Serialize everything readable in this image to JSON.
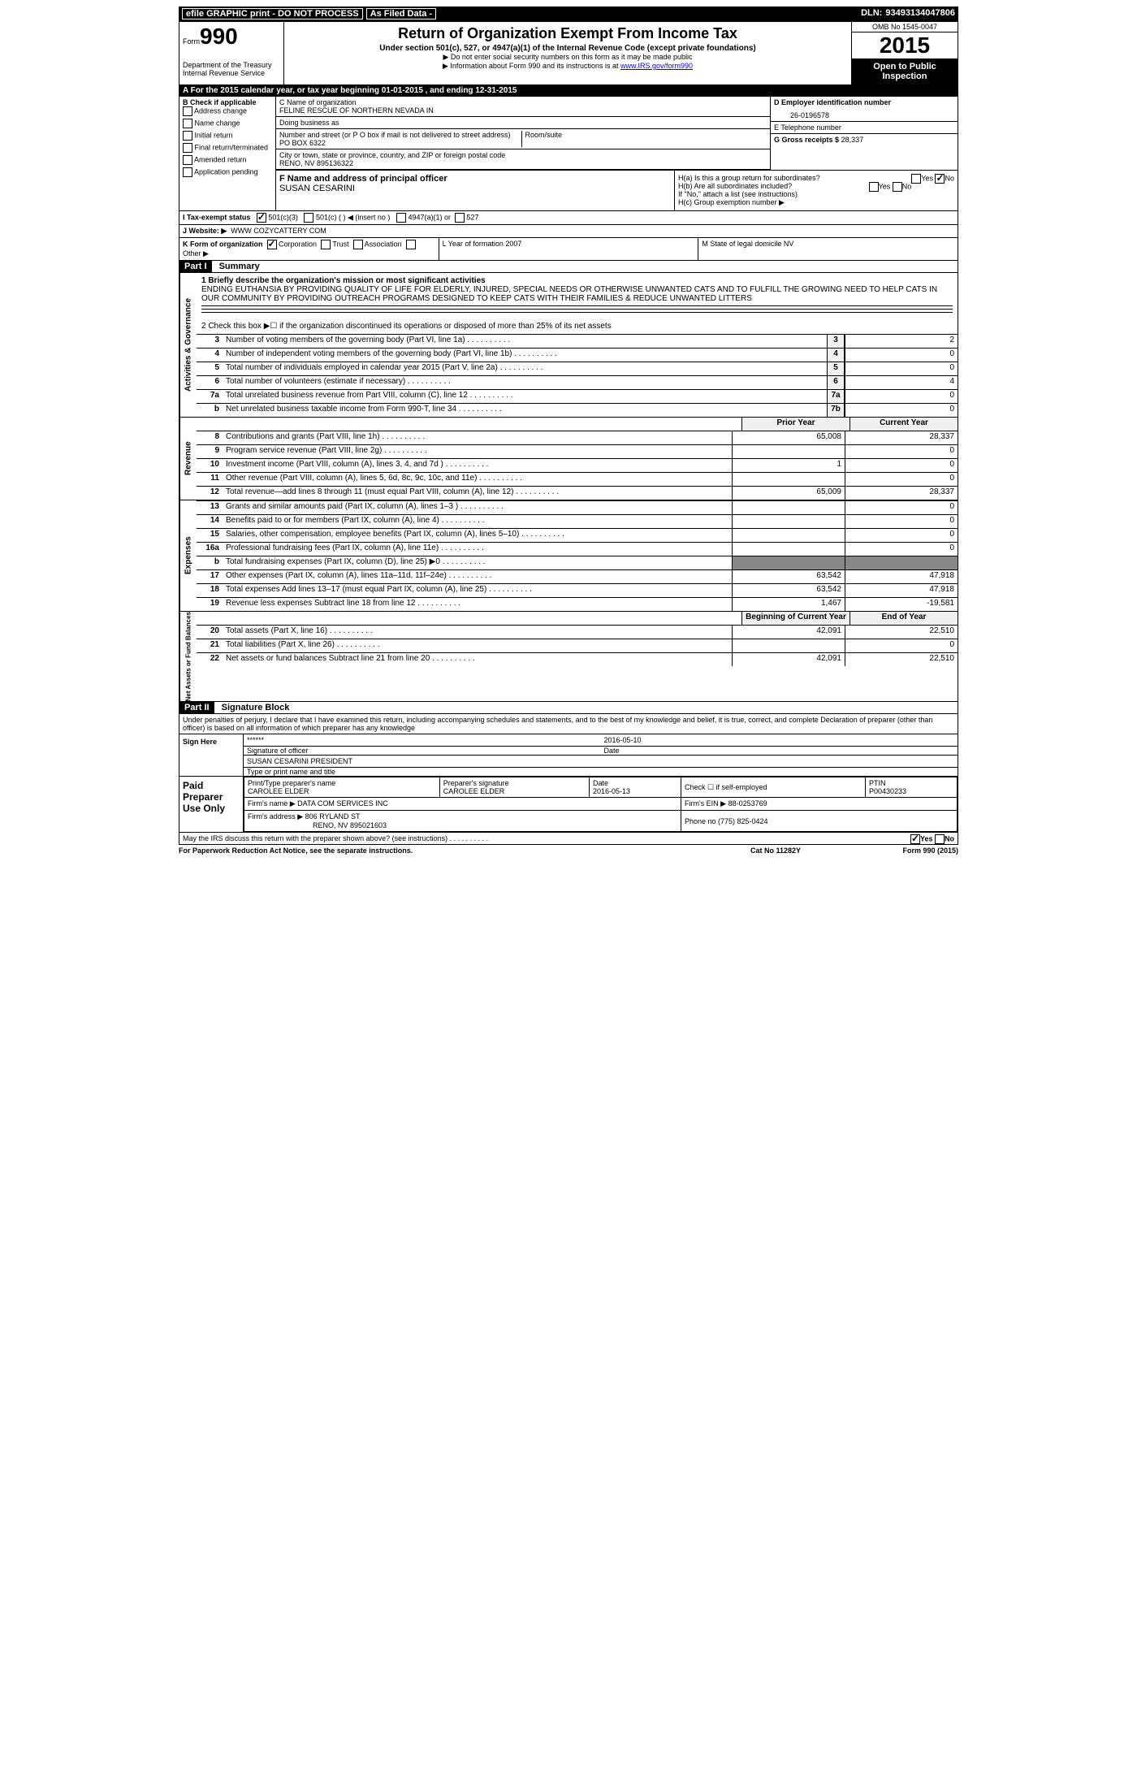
{
  "topbar": {
    "efile": "efile GRAPHIC print - DO NOT PROCESS",
    "asfiled": "As Filed Data -",
    "dln_label": "DLN:",
    "dln": "93493134047806"
  },
  "header": {
    "form_word": "Form",
    "form_num": "990",
    "dept": "Department of the Treasury",
    "irs": "Internal Revenue Service",
    "title": "Return of Organization Exempt From Income Tax",
    "sub": "Under section 501(c), 527, or 4947(a)(1) of the Internal Revenue Code (except private foundations)",
    "note1": "▶ Do not enter social security numbers on this form as it may be made public",
    "note2_pre": "▶ Information about Form 990 and its instructions is at ",
    "note2_link": "www.IRS.gov/form990",
    "omb": "OMB No 1545-0047",
    "year": "2015",
    "open": "Open to Public Inspection"
  },
  "rowA": "A  For the 2015 calendar year, or tax year beginning 01-01-2015    , and ending 12-31-2015",
  "colB": {
    "header": "B  Check if applicable",
    "items": [
      "Address change",
      "Name change",
      "Initial return",
      "Final return/terminated",
      "Amended return",
      "Application pending"
    ]
  },
  "sectionC": {
    "label_name": "C Name of organization",
    "org_name": "FELINE RESCUE OF NORTHERN NEVADA IN",
    "dba_label": "Doing business as",
    "dba": "",
    "street_label": "Number and street (or P O  box if mail is not delivered to street address)",
    "room_label": "Room/suite",
    "street": "PO BOX 6322",
    "city_label": "City or town, state or province, country, and ZIP or foreign postal code",
    "city": "RENO, NV  895136322"
  },
  "sectionD": {
    "label": "D Employer identification number",
    "value": "26-0196578"
  },
  "sectionE": {
    "label": "E Telephone number",
    "value": ""
  },
  "sectionG": {
    "label": "G Gross receipts $",
    "value": "28,337"
  },
  "sectionF": {
    "label": "F  Name and address of principal officer",
    "value": "SUSAN CESARINI"
  },
  "sectionH": {
    "a": "H(a)  Is this a group return for subordinates?",
    "b": "H(b)  Are all subordinates included?",
    "note": "If \"No,\" attach a list  (see instructions)",
    "c": "H(c)  Group exemption number ▶",
    "yes": "Yes",
    "no": "No"
  },
  "rowI": {
    "label": "I  Tax-exempt status",
    "opts": [
      "501(c)(3)",
      "501(c) (  ) ◀ (insert no )",
      "4947(a)(1) or",
      "527"
    ]
  },
  "rowJ": {
    "label": "J  Website: ▶",
    "value": "WWW COZYCATTERY COM"
  },
  "rowK": {
    "label": "K Form of organization",
    "opts": [
      "Corporation",
      "Trust",
      "Association",
      "Other ▶"
    ],
    "L": "L Year of formation  2007",
    "M": "M State of legal domicile  NV"
  },
  "part1": {
    "header": "Part I",
    "title": "Summary",
    "line1_label": "1 Briefly describe the organization's mission or most significant activities",
    "mission": "ENDING EUTHANSIA BY PROVIDING QUALITY OF LIFE FOR ELDERLY, INJURED, SPECIAL NEEDS OR OTHERWISE UNWANTED CATS AND TO FULFILL THE GROWING NEED TO HELP CATS IN OUR COMMUNITY BY PROVIDING OUTREACH PROGRAMS DESIGNED TO KEEP CATS WITH THEIR FAMILIES & REDUCE UNWANTED LITTERS",
    "line2": "2  Check this box ▶☐ if the organization discontinued its operations or disposed of more than 25% of its net assets",
    "activities_label": "Activities & Governance",
    "revenue_label": "Revenue",
    "expenses_label": "Expenses",
    "netassets_label": "Net Assets or Fund Balances",
    "lines_act": [
      {
        "n": "3",
        "t": "Number of voting members of the governing body (Part VI, line 1a)",
        "box": "3",
        "v": "2"
      },
      {
        "n": "4",
        "t": "Number of independent voting members of the governing body (Part VI, line 1b)",
        "box": "4",
        "v": "0"
      },
      {
        "n": "5",
        "t": "Total number of individuals employed in calendar year 2015 (Part V, line 2a)",
        "box": "5",
        "v": "0"
      },
      {
        "n": "6",
        "t": "Total number of volunteers (estimate if necessary)",
        "box": "6",
        "v": "4"
      },
      {
        "n": "7a",
        "t": "Total unrelated business revenue from Part VIII, column (C), line 12",
        "box": "7a",
        "v": "0"
      },
      {
        "n": "b",
        "t": "Net unrelated business taxable income from Form 990-T, line 34",
        "box": "7b",
        "v": "0"
      }
    ],
    "col_prior": "Prior Year",
    "col_curr": "Current Year",
    "lines_rev": [
      {
        "n": "8",
        "t": "Contributions and grants (Part VIII, line 1h)",
        "p": "65,008",
        "c": "28,337"
      },
      {
        "n": "9",
        "t": "Program service revenue (Part VIII, line 2g)",
        "p": "",
        "c": "0"
      },
      {
        "n": "10",
        "t": "Investment income (Part VIII, column (A), lines 3, 4, and 7d )",
        "p": "1",
        "c": "0"
      },
      {
        "n": "11",
        "t": "Other revenue (Part VIII, column (A), lines 5, 6d, 8c, 9c, 10c, and 11e)",
        "p": "",
        "c": "0"
      },
      {
        "n": "12",
        "t": "Total revenue—add lines 8 through 11 (must equal Part VIII, column (A), line 12)",
        "p": "65,009",
        "c": "28,337"
      }
    ],
    "lines_exp": [
      {
        "n": "13",
        "t": "Grants and similar amounts paid (Part IX, column (A), lines 1–3 )",
        "p": "",
        "c": "0"
      },
      {
        "n": "14",
        "t": "Benefits paid to or for members (Part IX, column (A), line 4)",
        "p": "",
        "c": "0"
      },
      {
        "n": "15",
        "t": "Salaries, other compensation, employee benefits (Part IX, column (A), lines 5–10)",
        "p": "",
        "c": "0"
      },
      {
        "n": "16a",
        "t": "Professional fundraising fees (Part IX, column (A), line 11e)",
        "p": "",
        "c": "0"
      },
      {
        "n": "b",
        "t": "Total fundraising expenses (Part IX, column (D), line 25) ▶0",
        "p": "SHADE",
        "c": "SHADE"
      },
      {
        "n": "17",
        "t": "Other expenses (Part IX, column (A), lines 11a–11d, 11f–24e)",
        "p": "63,542",
        "c": "47,918"
      },
      {
        "n": "18",
        "t": "Total expenses  Add lines 13–17 (must equal Part IX, column (A), line 25)",
        "p": "63,542",
        "c": "47,918"
      },
      {
        "n": "19",
        "t": "Revenue less expenses  Subtract line 18 from line 12",
        "p": "1,467",
        "c": "-19,581"
      }
    ],
    "col_begin": "Beginning of Current Year",
    "col_end": "End of Year",
    "lines_net": [
      {
        "n": "20",
        "t": "Total assets (Part X, line 16)",
        "p": "42,091",
        "c": "22,510"
      },
      {
        "n": "21",
        "t": "Total liabilities (Part X, line 26)",
        "p": "",
        "c": "0"
      },
      {
        "n": "22",
        "t": "Net assets or fund balances  Subtract line 21 from line 20",
        "p": "42,091",
        "c": "22,510"
      }
    ]
  },
  "part2": {
    "header": "Part II",
    "title": "Signature Block",
    "jurat": "Under penalties of perjury, I declare that I have examined this return, including accompanying schedules and statements, and to the best of my knowledge and belief, it is true, correct, and complete  Declaration of preparer (other than officer) is based on all information of which preparer has any knowledge",
    "sign_here": "Sign Here",
    "sig_stars": "******",
    "sig_officer": "Signature of officer",
    "sig_date_label": "Date",
    "sig_date": "2016-05-10",
    "sig_name": "SUSAN CESARINI PRESIDENT",
    "sig_name_label": "Type or print name and title",
    "paid": "Paid Preparer Use Only",
    "prep_name_label": "Print/Type preparer's name",
    "prep_name": "CAROLEE ELDER",
    "prep_sig_label": "Preparer's signature",
    "prep_sig": "CAROLEE ELDER",
    "prep_date_label": "Date",
    "prep_date": "2016-05-13",
    "prep_check": "Check ☐ if self-employed",
    "ptin_label": "PTIN",
    "ptin": "P00430233",
    "firm_name_label": "Firm's name    ▶",
    "firm_name": "DATA COM SERVICES INC",
    "firm_ein_label": "Firm's EIN ▶",
    "firm_ein": "88-0253769",
    "firm_addr_label": "Firm's address ▶",
    "firm_addr": "806 RYLAND ST",
    "firm_city": "RENO, NV  895021603",
    "phone_label": "Phone no",
    "phone": "(775) 825-0424",
    "discuss": "May the IRS discuss this return with the preparer shown above? (see instructions)",
    "discuss_yes": "Yes",
    "discuss_no": "No"
  },
  "footer": {
    "left": "For Paperwork Reduction Act Notice, see the separate instructions.",
    "mid": "Cat No 11282Y",
    "right": "Form 990 (2015)"
  }
}
